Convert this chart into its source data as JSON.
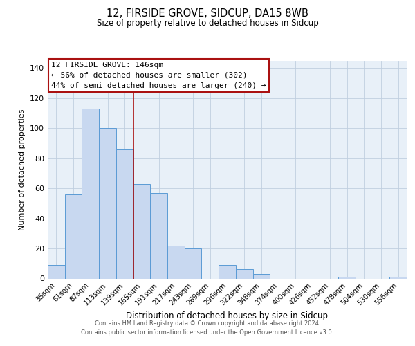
{
  "title": "12, FIRSIDE GROVE, SIDCUP, DA15 8WB",
  "subtitle": "Size of property relative to detached houses in Sidcup",
  "xlabel": "Distribution of detached houses by size in Sidcup",
  "ylabel": "Number of detached properties",
  "bar_color": "#c8d8f0",
  "bar_edge_color": "#5b9bd5",
  "bg_color": "#e8f0f8",
  "grid_color": "#c0cfe0",
  "vline_color": "#aa1111",
  "bin_labels": [
    "35sqm",
    "61sqm",
    "87sqm",
    "113sqm",
    "139sqm",
    "165sqm",
    "191sqm",
    "217sqm",
    "243sqm",
    "269sqm",
    "296sqm",
    "322sqm",
    "348sqm",
    "374sqm",
    "400sqm",
    "426sqm",
    "452sqm",
    "478sqm",
    "504sqm",
    "530sqm",
    "556sqm"
  ],
  "bar_values": [
    9,
    56,
    113,
    100,
    86,
    63,
    57,
    22,
    20,
    0,
    9,
    6,
    3,
    0,
    0,
    0,
    0,
    1,
    0,
    0,
    1
  ],
  "vline_x": 4.5,
  "annotation_line1": "12 FIRSIDE GROVE: 146sqm",
  "annotation_line2": "← 56% of detached houses are smaller (302)",
  "annotation_line3": "44% of semi-detached houses are larger (240) →",
  "ylim_max": 145,
  "yticks": [
    0,
    20,
    40,
    60,
    80,
    100,
    120,
    140
  ],
  "footer1": "Contains HM Land Registry data © Crown copyright and database right 2024.",
  "footer2": "Contains public sector information licensed under the Open Government Licence v3.0."
}
